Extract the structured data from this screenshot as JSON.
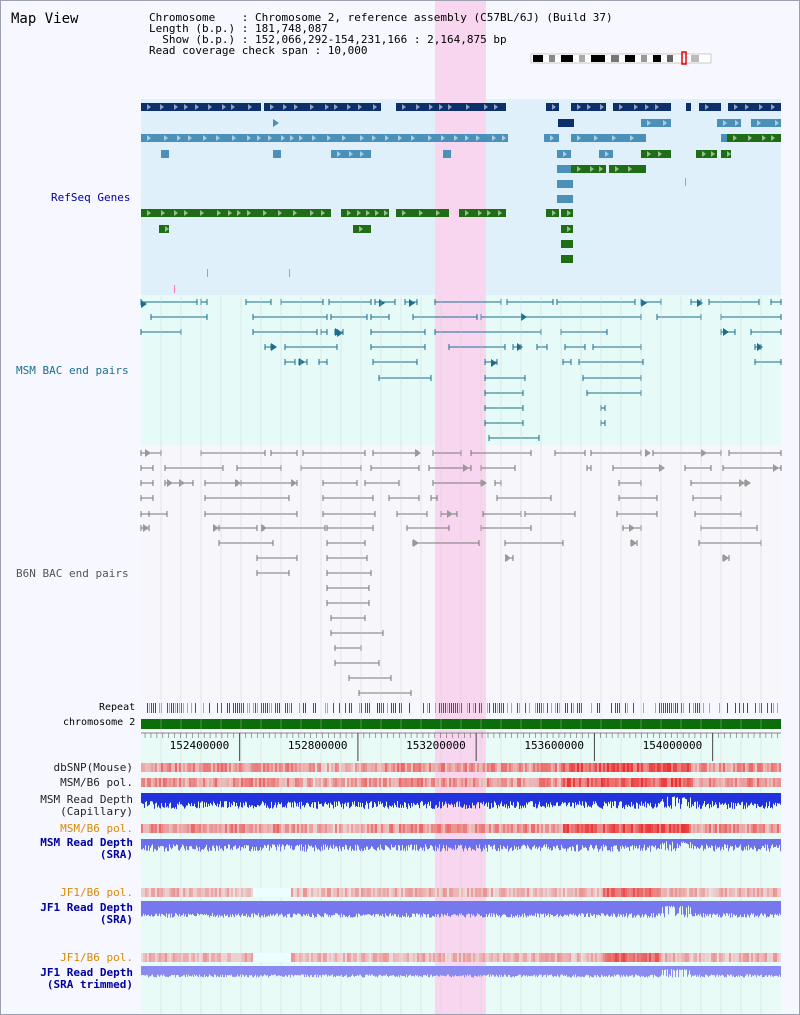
{
  "title": "Map View",
  "info": {
    "line1": "Chromosome    : Chromosome 2, reference assembly (C57BL/6J) (Build 37)",
    "line2": "Length (b.p.) : 181,748,087",
    "line3": "  Show (b.p.) : 152,066,292-154,231,166 : 2,164,875 bp",
    "line4": "Read coverage check span : 10,000"
  },
  "tracks": {
    "refseq": "RefSeq Genes",
    "msm_bac": "MSM BAC end pairs",
    "b6n_bac": "B6N BAC end pairs",
    "repeat": "Repeat",
    "chromosome": "chromosome 2"
  },
  "axis": {
    "ticks": [
      "152400000",
      "152800000",
      "153200000",
      "153600000",
      "154000000"
    ],
    "tick_positions_bp": [
      152400000,
      152800000,
      153200000,
      153600000,
      154000000
    ],
    "start_bp": 152066292,
    "end_bp": 154231166
  },
  "data_tracks": [
    {
      "key": "dbsnp",
      "label1": "dbSNP(Mouse)",
      "label2": ""
    },
    {
      "key": "msm_pol",
      "label1": "MSM/B6 pol.",
      "label2": ""
    },
    {
      "key": "msm_depth_cap",
      "label1": "MSM Read Depth",
      "label2": "(Capillary)"
    },
    {
      "key": "msm_pol2",
      "label1": "MSM/B6 pol.",
      "label2": ""
    },
    {
      "key": "msm_depth_sra",
      "label1": "MSM Read Depth",
      "label2": "(SRA)"
    },
    {
      "key": "jf1_pol",
      "label1": "JF1/B6 pol.",
      "label2": ""
    },
    {
      "key": "jf1_depth_sra",
      "label1": "JF1 Read Depth",
      "label2": "(SRA)"
    },
    {
      "key": "jf1_pol2",
      "label1": "JF1/B6 pol.",
      "label2": ""
    },
    {
      "key": "jf1_depth_trim",
      "label1": "JF1 Read Depth",
      "label2": "(SRA trimmed)"
    }
  ],
  "colors": {
    "refseq_dark": "#0d2f6a",
    "refseq_mid": "#4a90b8",
    "refseq_green": "#1f6e16",
    "msm_bac": "#1a6e8e",
    "b6n_bac": "#777777",
    "highlight": "#f8d6f0",
    "chrom_bar": "#0b6e0b",
    "depth_blue": "#2233dd",
    "depth_light": "#7777ee",
    "label_blue": "#0000a0",
    "label_orange": "#d98a00"
  }
}
